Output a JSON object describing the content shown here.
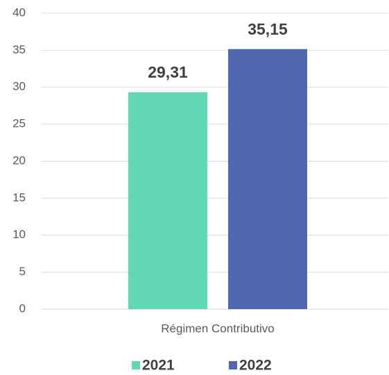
{
  "chart_data": {
    "type": "bar",
    "categories": [
      "Régimen Contributivo"
    ],
    "series": [
      {
        "name": "2021",
        "color": "#62d7b4",
        "values": [
          29.31
        ],
        "value_labels": [
          "29,31"
        ]
      },
      {
        "name": "2022",
        "color": "#5068ae",
        "values": [
          35.15
        ],
        "value_labels": [
          "35,15"
        ]
      }
    ],
    "ylim": [
      0,
      40
    ],
    "yticks": [
      0,
      5,
      10,
      15,
      20,
      25,
      30,
      35,
      40
    ],
    "grid": true,
    "legend": "bottom"
  }
}
